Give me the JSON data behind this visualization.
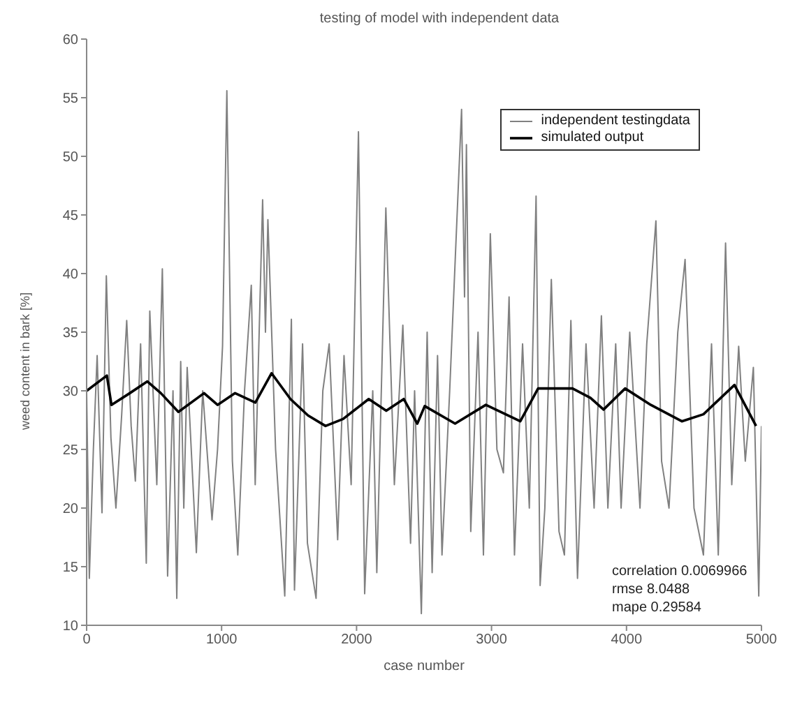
{
  "chart_data": {
    "type": "line",
    "title": "testing of model with independent data",
    "xlabel": "case number",
    "ylabel": "weed content in bark [%]",
    "annotations": [
      "correlation 0.0069966",
      "rmse 8.0488",
      "mape 0.29584"
    ],
    "series": [
      {
        "name": "independent testingdata",
        "color": "#808080",
        "x": [
          0,
          20,
          50,
          78,
          114,
          146,
          180,
          217,
          260,
          297,
          330,
          361,
          400,
          442,
          468,
          520,
          561,
          600,
          640,
          668,
          697,
          720,
          745,
          813,
          860,
          929,
          970,
          1007,
          1039,
          1080,
          1120,
          1170,
          1220,
          1249,
          1304,
          1325,
          1343,
          1400,
          1468,
          1517,
          1540,
          1600,
          1636,
          1700,
          1750,
          1797,
          1860,
          1907,
          1960,
          2014,
          2060,
          2120,
          2150,
          2217,
          2280,
          2343,
          2400,
          2430,
          2480,
          2523,
          2560,
          2600,
          2633,
          2690,
          2731,
          2778,
          2800,
          2814,
          2846,
          2900,
          2940,
          2991,
          3040,
          3088,
          3130,
          3170,
          3230,
          3280,
          3330,
          3360,
          3395,
          3443,
          3500,
          3540,
          3588,
          3637,
          3700,
          3760,
          3814,
          3862,
          3920,
          3960,
          4024,
          4100,
          4150,
          4218,
          4260,
          4315,
          4380,
          4434,
          4500,
          4570,
          4630,
          4680,
          4734,
          4780,
          4831,
          4880,
          4940,
          4980,
          5000
        ],
        "values": [
          30,
          14,
          25,
          33,
          19.6,
          39.8,
          26,
          20,
          28,
          36,
          27,
          22.3,
          34,
          15.3,
          36.8,
          22,
          40.4,
          14.2,
          30,
          12.3,
          32.5,
          20,
          32,
          16.2,
          30,
          19,
          25,
          33.8,
          55.6,
          24,
          16,
          30,
          39,
          22,
          46.3,
          35,
          44.6,
          25,
          12.5,
          36.1,
          13,
          34,
          17,
          12.3,
          30,
          34,
          17.3,
          33,
          22,
          52.1,
          12.7,
          30,
          14.5,
          45.6,
          22,
          35.6,
          17,
          30,
          11,
          35,
          14.5,
          33,
          16,
          30,
          41.2,
          54,
          38,
          51,
          18,
          35,
          16,
          43.4,
          25,
          23,
          38,
          16,
          34,
          20,
          46.6,
          13.4,
          20,
          39.5,
          18,
          16,
          36,
          14,
          34,
          20,
          36.4,
          20,
          34,
          20,
          35,
          20,
          34,
          44.5,
          24,
          20,
          35,
          41.2,
          20,
          16,
          34,
          16,
          42.6,
          22,
          33.8,
          24,
          32,
          12.5,
          27
        ]
      },
      {
        "name": "simulated output",
        "color": "#000000",
        "x": [
          0,
          150,
          184,
          320,
          450,
          550,
          680,
          870,
          970,
          1100,
          1250,
          1370,
          1510,
          1640,
          1770,
          1900,
          2090,
          2220,
          2350,
          2450,
          2505,
          2730,
          2958,
          3213,
          3345,
          3600,
          3733,
          3830,
          3990,
          4180,
          4410,
          4570,
          4800,
          4960
        ],
        "values": [
          30,
          31.3,
          28.8,
          29.8,
          30.8,
          29.8,
          28.2,
          29.8,
          28.8,
          29.8,
          29,
          31.5,
          29.3,
          27.9,
          27,
          27.6,
          29.3,
          28.3,
          29.3,
          27.2,
          28.7,
          27.2,
          28.8,
          27.4,
          30.2,
          30.2,
          29.4,
          28.4,
          30.2,
          28.8,
          27.4,
          28,
          30.5,
          27
        ]
      }
    ],
    "xlim": [
      0,
      5000
    ],
    "xticks": [
      0,
      1000,
      2000,
      3000,
      4000,
      5000
    ],
    "ylim": [
      10,
      60
    ],
    "yticks": [
      10,
      15,
      20,
      25,
      30,
      35,
      40,
      45,
      50,
      55,
      60
    ],
    "legend": "top right",
    "grid": false,
    "marker": "none",
    "line_style": "solid"
  }
}
